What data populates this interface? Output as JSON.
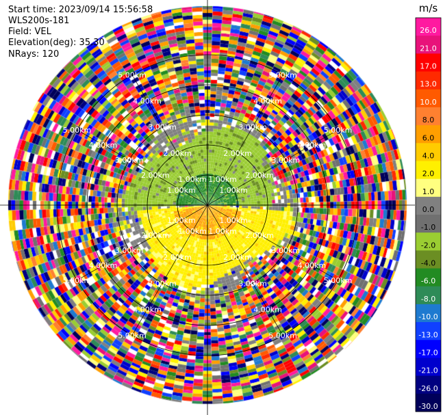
{
  "meta": {
    "start_time": "Start time: 2023/09/14 15:56:58",
    "instrument": "WLS200s-181",
    "field": "Field: VEL",
    "elevation": "Elevation(deg): 35.30",
    "nrays": "NRays: 120"
  },
  "chart_data": {
    "type": "heatmap",
    "projection": "polar-ppi",
    "nrays": 120,
    "ring_labels": [
      "1.00km",
      "2.00km",
      "3.00km",
      "4.00km",
      "5.00km"
    ],
    "ring_label_azimuths_deg": [
      30,
      60,
      120,
      150,
      210,
      240,
      300,
      330
    ],
    "colorbar": {
      "unit": "m/s",
      "ticks": [
        "26.0",
        "21.0",
        "17.0",
        "13.0",
        "10.0",
        "8.0",
        "6.0",
        "4.0",
        "2.0",
        "1.0",
        "0.0",
        "-1.0",
        "-2.0",
        "-4.0",
        "-6.0",
        "-8.0",
        "-10.0",
        "-13.0",
        "-17.0",
        "-21.0",
        "-26.0",
        "-30.0"
      ],
      "colors": [
        "#ff1aa0",
        "#e8127a",
        "#ff0000",
        "#ff2a00",
        "#ff5a00",
        "#ff8030",
        "#ff9e00",
        "#ffcc00",
        "#fff000",
        "#ffff80",
        "#808080",
        "#707070",
        "#9acd32",
        "#6b8e23",
        "#228b22",
        "#2e8b57",
        "#1e7ad0",
        "#1040ff",
        "#0000ff",
        "#0000cd",
        "#000080",
        "#00005a"
      ]
    },
    "regions": {
      "inner_green": {
        "r_km": [
          0,
          1.0
        ],
        "az_deg": [
          -90,
          90
        ],
        "color_index": 14
      },
      "green_band": {
        "r_km": [
          0,
          2.4
        ],
        "az_deg": [
          -90,
          90
        ],
        "color_index": 12
      },
      "inner_orange": {
        "r_km": [
          0,
          1.1
        ],
        "az_deg": [
          100,
          260
        ],
        "color_index": 6
      },
      "yellow_band": {
        "r_km": [
          0,
          2.5
        ],
        "az_deg": [
          95,
          265
        ],
        "color_index": 8
      },
      "gray_band": {
        "r_km": [
          0,
          2.8
        ],
        "color_index": 10
      },
      "noise": {
        "r_km": [
          2.8,
          6.6
        ]
      }
    }
  }
}
